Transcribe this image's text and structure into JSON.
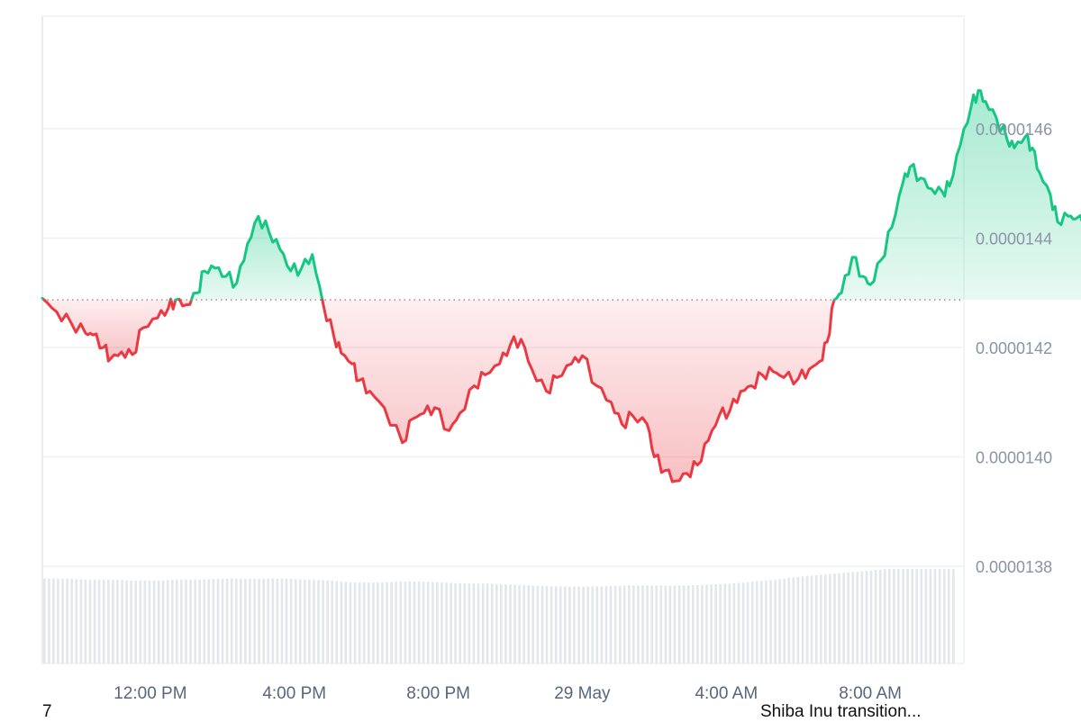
{
  "chart_data": {
    "type": "area",
    "title": "",
    "xlabel": "",
    "ylabel": "",
    "baseline_value": 1.42871e-05,
    "ylim": [
      1.37e-05,
      1.48e-05
    ],
    "x_ticks": [
      "12:00 PM",
      "4:00 PM",
      "8:00 PM",
      "29 May",
      "4:00 AM",
      "8:00 AM"
    ],
    "y_ticks": [
      "0.0000138",
      "0.0000140",
      "0.0000142",
      "0.0000144",
      "0.0000146"
    ],
    "y_tick_values": [
      1.38e-05,
      1.4e-05,
      1.42e-05,
      1.44e-05,
      1.46e-05
    ],
    "x_range_hours": [
      -3.0,
      22.6
    ],
    "x_tick_hours": [
      0,
      4,
      8,
      12,
      16,
      20
    ],
    "series": [
      {
        "values": [
          [
            -3.0,
            1.429e-05
          ],
          [
            -2.6,
            1.4265e-05
          ],
          [
            -2.2,
            1.4245e-05
          ],
          [
            -1.8,
            1.4226e-05
          ],
          [
            -1.6,
            1.4223e-05
          ],
          [
            -1.3,
            1.42e-05
          ],
          [
            -1.1,
            1.418e-05
          ],
          [
            -0.8,
            1.4192e-05
          ],
          [
            -0.5,
            1.4187e-05
          ],
          [
            -0.2,
            1.4236e-05
          ],
          [
            0.2,
            1.4254e-05
          ],
          [
            0.5,
            1.4272e-05
          ],
          [
            0.7,
            1.4287e-05
          ],
          [
            1.0,
            1.4278e-05
          ],
          [
            1.3,
            1.43e-05
          ],
          [
            1.5,
            1.434e-05
          ],
          [
            1.8,
            1.4345e-05
          ],
          [
            2.1,
            1.433e-05
          ],
          [
            2.4,
            1.4318e-05
          ],
          [
            2.7,
            1.439e-05
          ],
          [
            3.0,
            1.444e-05
          ],
          [
            3.3,
            1.441e-05
          ],
          [
            3.6,
            1.438e-05
          ],
          [
            3.9,
            1.434e-05
          ],
          [
            4.2,
            1.4345e-05
          ],
          [
            4.5,
            1.437e-05
          ],
          [
            4.8,
            1.428e-05
          ],
          [
            5.1,
            1.422e-05
          ],
          [
            5.3,
            1.419e-05
          ],
          [
            5.6,
            1.417e-05
          ],
          [
            5.8,
            1.414e-05
          ],
          [
            6.1,
            1.412e-05
          ],
          [
            6.5,
            1.409e-05
          ],
          [
            7.0,
            1.4026e-05
          ],
          [
            7.3,
            1.407e-05
          ],
          [
            7.6,
            1.408e-05
          ],
          [
            7.9,
            1.409e-05
          ],
          [
            8.3,
            1.4048e-05
          ],
          [
            8.6,
            1.408e-05
          ],
          [
            9.0,
            1.413e-05
          ],
          [
            9.3,
            1.415e-05
          ],
          [
            9.7,
            1.417e-05
          ],
          [
            10.0,
            1.4205e-05
          ],
          [
            10.3,
            1.4215e-05
          ],
          [
            10.6,
            1.416e-05
          ],
          [
            11.0,
            1.412e-05
          ],
          [
            11.3,
            1.4145e-05
          ],
          [
            11.7,
            1.417e-05
          ],
          [
            12.0,
            1.4185e-05
          ],
          [
            12.4,
            1.413e-05
          ],
          [
            12.8,
            1.41e-05
          ],
          [
            13.1,
            1.406e-05
          ],
          [
            13.4,
            1.4075e-05
          ],
          [
            13.8,
            1.406e-05
          ],
          [
            14.0,
            1.4e-05
          ],
          [
            14.3,
            1.3975e-05
          ],
          [
            14.6,
            1.3956e-05
          ],
          [
            14.9,
            1.397e-05
          ],
          [
            15.2,
            1.3985e-05
          ],
          [
            15.5,
            1.403e-05
          ],
          [
            15.8,
            1.4075e-05
          ],
          [
            16.1,
            1.4085e-05
          ],
          [
            16.4,
            1.412e-05
          ],
          [
            16.7,
            1.413e-05
          ],
          [
            17.0,
            1.415e-05
          ],
          [
            17.3,
            1.4156e-05
          ],
          [
            17.6,
            1.4145e-05
          ],
          [
            18.0,
            1.4143e-05
          ],
          [
            18.3,
            1.416e-05
          ],
          [
            18.6,
            1.4175e-05
          ],
          [
            18.8,
            1.421e-05
          ],
          [
            19.0,
            1.42871e-05
          ],
          [
            19.2,
            1.43e-05
          ],
          [
            19.5,
            1.4365e-05
          ],
          [
            19.8,
            1.433e-05
          ],
          [
            20.0,
            1.4315e-05
          ],
          [
            20.3,
            1.436e-05
          ],
          [
            20.6,
            1.442e-05
          ],
          [
            20.9,
            1.45e-05
          ],
          [
            21.1,
            1.453e-05
          ],
          [
            21.4,
            1.451e-05
          ],
          [
            21.7,
            1.449e-05
          ],
          [
            22.0,
            1.4485e-05
          ],
          [
            22.2,
            1.4495e-05
          ],
          [
            22.5,
            1.457e-05
          ],
          [
            22.8,
            1.464e-05
          ],
          [
            23.0,
            1.467e-05
          ],
          [
            23.2,
            1.465e-05
          ],
          [
            23.5,
            1.462e-05
          ],
          [
            23.8,
            1.458e-05
          ],
          [
            24.0,
            1.4565e-05
          ],
          [
            24.3,
            1.4585e-05
          ],
          [
            24.5,
            1.4565e-05
          ],
          [
            24.7,
            1.452e-05
          ],
          [
            25.0,
            1.448e-05
          ],
          [
            25.2,
            1.443e-05
          ],
          [
            25.5,
            1.444e-05
          ],
          [
            25.7,
            1.4435e-05
          ],
          [
            26.1,
            1.442e-05
          ],
          [
            26.4,
            1.441e-05
          ],
          [
            26.7,
            1.443e-05
          ],
          [
            27.0,
            1.4425e-05
          ],
          [
            27.3,
            1.444e-05
          ],
          [
            27.7,
            1.442e-05
          ],
          [
            28.0,
            1.441e-05
          ],
          [
            28.4,
            1.4435e-05
          ],
          [
            28.8,
            1.444e-05
          ],
          [
            29.2,
            1.4405e-05
          ],
          [
            29.5,
            1.44e-05
          ],
          [
            29.8,
            1.443e-05
          ],
          [
            30.0,
            1.445e-05
          ],
          [
            30.3,
            1.4445e-05
          ],
          [
            30.6,
            1.4455e-05
          ],
          [
            30.9,
            1.447e-05
          ],
          [
            31.2,
            1.4465e-05
          ],
          [
            31.5,
            1.447e-05
          ],
          [
            31.9,
            1.448e-05
          ]
        ]
      }
    ],
    "volume": [
      0.88,
      0.88,
      0.87,
      0.87,
      0.86,
      0.86,
      0.87,
      0.87,
      0.88,
      0.88,
      0.88,
      0.88,
      0.87,
      0.86,
      0.84,
      0.84,
      0.85,
      0.85,
      0.84,
      0.83,
      0.83,
      0.82,
      0.81,
      0.8,
      0.8,
      0.8,
      0.81,
      0.81,
      0.81,
      0.81,
      0.82,
      0.83,
      0.85,
      0.87,
      0.9,
      0.92,
      0.94,
      0.96,
      0.98,
      0.98,
      0.98,
      0.98
    ],
    "colors": {
      "up": "#16c784",
      "down": "#ea3943",
      "grid": "#eef0f3",
      "volume": "#e3e6ec",
      "baseline": "#b07a86"
    },
    "grid": true
  },
  "footer": {
    "left_text": "7",
    "right_text": "Shiba Inu transition..."
  }
}
